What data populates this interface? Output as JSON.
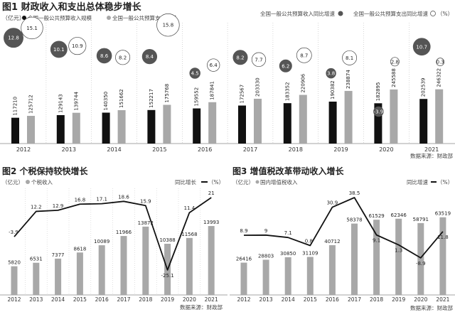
{
  "chart_data": [
    {
      "type": "bar",
      "title": "图1  财政收入和支出总体稳步增长",
      "unit": "（亿元）",
      "categories": [
        "2012",
        "2013",
        "2014",
        "2015",
        "2016",
        "2017",
        "2018",
        "2019",
        "2020",
        "2021"
      ],
      "series": [
        {
          "name": "全国一般公共预算收入规模",
          "values": [
            117210,
            129143,
            140350,
            152217,
            159552,
            172567,
            183352,
            190382,
            182895,
            202539
          ],
          "color": "#111111"
        },
        {
          "name": "全国一般公共预算支出规模",
          "values": [
            125712,
            139744,
            151662,
            175768,
            187841,
            203330,
            220906,
            238874,
            245588,
            246322
          ],
          "color": "#a8a8a8"
        }
      ],
      "growth_series": [
        {
          "name": "全国一般公共预算收入同比增速",
          "values": [
            12.8,
            10.1,
            8.6,
            8.4,
            4.5,
            8.2,
            6.2,
            3.8,
            -3.9,
            10.7
          ],
          "marker": "filled-circle",
          "color": "#555555"
        },
        {
          "name": "全国一般公共预算支出同比增速",
          "values": [
            15.1,
            10.9,
            8.2,
            15.8,
            6.4,
            7.7,
            8.7,
            8.1,
            2.8,
            0.3
          ],
          "marker": "open-circle",
          "color": "#ffffff"
        }
      ],
      "growth_unit": "（%）",
      "source": "数据来源：财政部"
    },
    {
      "type": "bar+line",
      "title": "图2 个税保持较快增长",
      "unit": "（亿元）",
      "bar_legend": "个税收入",
      "line_legend": "同比增长",
      "line_unit": "（%）",
      "categories": [
        "2012",
        "2013",
        "2014",
        "2015",
        "2016",
        "2017",
        "2018",
        "2019",
        "2020",
        "2021"
      ],
      "bars": [
        5820,
        6531,
        7377,
        8618,
        10089,
        11966,
        13872,
        10388,
        11568,
        13993
      ],
      "line": [
        -3.9,
        12.2,
        12.9,
        16.8,
        17.1,
        18.6,
        15.9,
        -25.1,
        11.4,
        21
      ],
      "bar_color": "#a8a8a8",
      "line_color": "#111111",
      "source": "数据来源：财政部"
    },
    {
      "type": "bar+line",
      "title": "图3 增值税改革带动收入增长",
      "unit": "（亿元）",
      "bar_legend": "国内增值税收入",
      "line_legend": "同比增速",
      "line_unit": "（%）",
      "categories": [
        "2012",
        "2013",
        "2014",
        "2015",
        "2016",
        "2017",
        "2018",
        "2019",
        "2020",
        "2021"
      ],
      "bars": [
        26416,
        28803,
        30850,
        31109,
        40712,
        58378,
        61529,
        62346,
        58791,
        63519
      ],
      "line": [
        8.9,
        9,
        7.1,
        0.8,
        30.9,
        38.5,
        9.1,
        1.3,
        -8.9,
        11.8
      ],
      "bar_color": "#a8a8a8",
      "line_color": "#111111",
      "source": "数据来源：财政部"
    }
  ]
}
